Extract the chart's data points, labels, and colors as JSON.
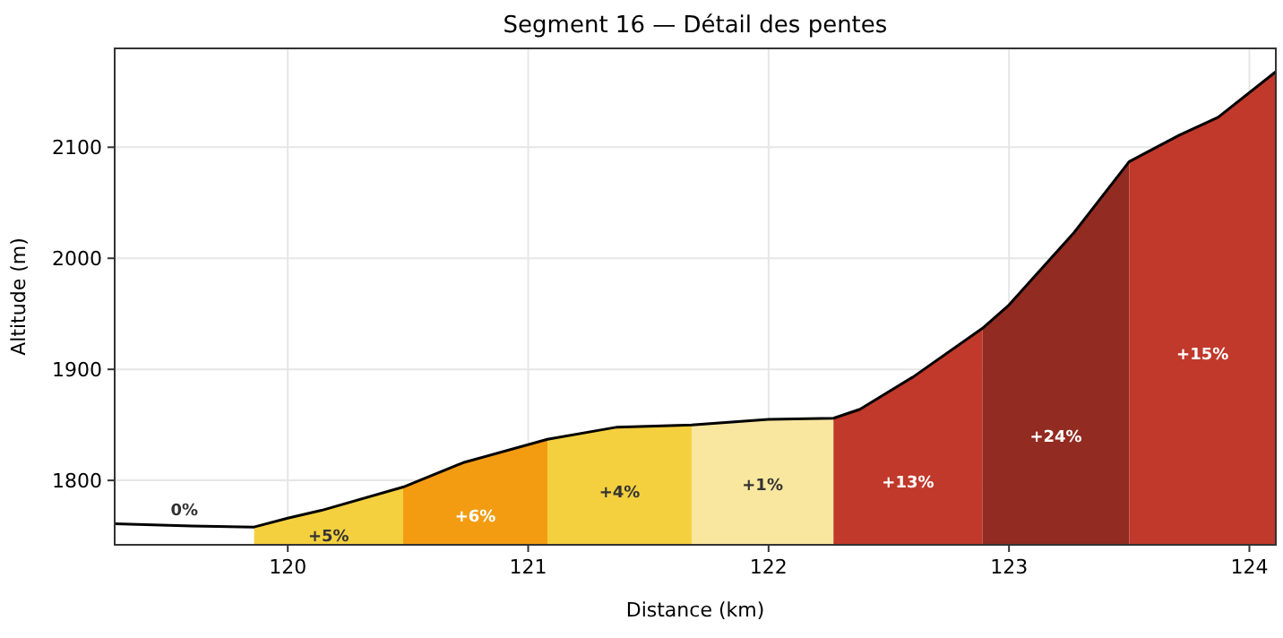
{
  "chart_data": {
    "type": "area",
    "title": "Segment 16 — Détail des pentes",
    "xlabel": "Distance (km)",
    "ylabel": "Altitude (m)",
    "xlim": [
      119.28,
      124.11
    ],
    "ylim": [
      1742,
      2189
    ],
    "xticks": [
      120,
      121,
      122,
      123,
      124
    ],
    "yticks": [
      1800,
      1900,
      2000,
      2100
    ],
    "grid": true,
    "series": [
      {
        "color": "#f4d03f",
        "x": [
          119.86,
          120.0,
          120.14,
          120.48
        ],
        "values": [
          1758,
          1766,
          1773,
          1794
        ]
      },
      {
        "color": "#f39c12",
        "x": [
          120.48,
          120.73,
          121.08
        ],
        "values": [
          1794,
          1816,
          1837
        ]
      },
      {
        "color": "#f4d03f",
        "x": [
          121.08,
          121.37,
          121.68
        ],
        "values": [
          1837,
          1848,
          1850
        ]
      },
      {
        "color": "#f9e79f",
        "x": [
          121.68,
          122.0,
          122.27
        ],
        "values": [
          1850,
          1855,
          1856
        ]
      },
      {
        "color": "#c0392b",
        "x": [
          122.27,
          122.38,
          122.6,
          122.89
        ],
        "values": [
          1856,
          1864,
          1893,
          1937
        ]
      },
      {
        "color": "#922b21",
        "x": [
          122.89,
          123.0,
          123.27,
          123.5
        ],
        "values": [
          1937,
          1958,
          2023,
          2087
        ]
      },
      {
        "color": "#c0392b",
        "x": [
          123.5,
          123.71,
          123.87,
          124.11
        ],
        "values": [
          2087,
          2111,
          2127,
          2168
        ]
      },
      {
        "type": "line",
        "color": "#000000",
        "x": [
          119.28,
          119.6,
          119.86,
          120.0,
          120.14,
          120.48,
          120.73,
          121.08,
          121.37,
          121.68,
          122.0,
          122.27,
          122.38,
          122.6,
          122.89,
          123.0,
          123.27,
          123.5,
          123.71,
          123.87,
          124.11
        ],
        "values": [
          1761,
          1759,
          1758,
          1766,
          1773,
          1794,
          1816,
          1837,
          1848,
          1850,
          1855,
          1856,
          1864,
          1893,
          1937,
          1958,
          2023,
          2087,
          2111,
          2127,
          2168
        ]
      }
    ],
    "annotations": [
      "0%",
      "+5%",
      "+6%",
      "+4%",
      "+1%",
      "+13%",
      "+24%",
      "+15%"
    ]
  }
}
